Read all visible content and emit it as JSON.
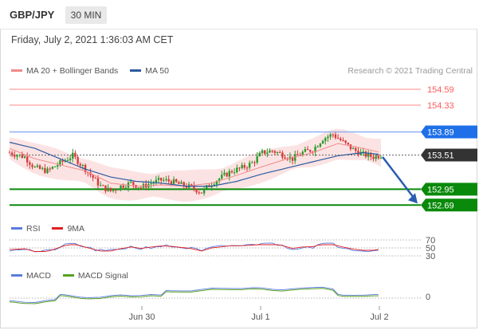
{
  "header": {
    "symbol": "GBP/JPY",
    "timeframe": "30 MIN"
  },
  "timestamp": "Friday, July 2, 2021 1:36:03 AM CET",
  "legend_main": [
    {
      "label": "MA 20 + Bollinger Bands",
      "color": "#f08a8a"
    },
    {
      "label": "MA 50",
      "color": "#2c5aa0"
    }
  ],
  "copyright": "Research © 2021 Trading Central",
  "legend_rsi": [
    {
      "label": "RSI",
      "color": "#5b7be0"
    },
    {
      "label": "9MA",
      "color": "#e02020"
    }
  ],
  "legend_macd": [
    {
      "label": "MACD",
      "color": "#5b7be0"
    },
    {
      "label": "MACD Signal",
      "color": "#5aa020"
    }
  ],
  "colors": {
    "resistance": "#ff5a5a",
    "pivot": "#1e6fe8",
    "support": "#0a8a0a",
    "last": "#333333",
    "arrow": "#2a5db0",
    "up_candle": "#2a9a2a",
    "down_candle": "#d83a3a"
  },
  "chart_data": [
    {
      "type": "candlestick",
      "name": "price",
      "ylim": [
        152.55,
        154.72
      ],
      "levels": [
        {
          "value": 154.59,
          "label": "154.59",
          "kind": "resistance"
        },
        {
          "value": 154.33,
          "label": "154.33",
          "kind": "resistance"
        },
        {
          "value": 153.89,
          "label": "153.89",
          "kind": "pivot"
        },
        {
          "value": 153.51,
          "label": "153.51",
          "kind": "last"
        },
        {
          "value": 152.95,
          "label": "152.95",
          "kind": "support"
        },
        {
          "value": 152.69,
          "label": "152.69",
          "kind": "support"
        }
      ],
      "x_ticks": [
        "Jun 30",
        "Jul 1",
        "Jul 2"
      ],
      "close_path": [
        [
          0,
          153.55
        ],
        [
          6,
          153.48
        ],
        [
          10,
          153.3
        ],
        [
          15,
          153.25
        ],
        [
          20,
          153.38
        ],
        [
          25,
          153.5
        ],
        [
          30,
          153.28
        ],
        [
          36,
          153.0
        ],
        [
          40,
          152.92
        ],
        [
          44,
          153.0
        ],
        [
          48,
          153.05
        ],
        [
          52,
          152.98
        ],
        [
          56,
          153.05
        ],
        [
          60,
          153.1
        ],
        [
          64,
          153.08
        ],
        [
          68,
          153.02
        ],
        [
          72,
          152.98
        ],
        [
          76,
          152.9
        ],
        [
          80,
          153.05
        ],
        [
          84,
          153.15
        ],
        [
          88,
          153.25
        ],
        [
          92,
          153.3
        ],
        [
          96,
          153.38
        ],
        [
          100,
          153.55
        ],
        [
          104,
          153.58
        ],
        [
          108,
          153.52
        ],
        [
          112,
          153.45
        ],
        [
          116,
          153.55
        ],
        [
          120,
          153.6
        ],
        [
          124,
          153.78
        ],
        [
          128,
          153.85
        ],
        [
          132,
          153.72
        ],
        [
          136,
          153.6
        ],
        [
          140,
          153.52
        ],
        [
          144,
          153.48
        ],
        [
          147,
          153.51
        ]
      ],
      "ma20": [
        [
          0,
          153.62
        ],
        [
          10,
          153.45
        ],
        [
          20,
          153.35
        ],
        [
          30,
          153.25
        ],
        [
          40,
          153.05
        ],
        [
          50,
          153.0
        ],
        [
          60,
          153.02
        ],
        [
          70,
          153.0
        ],
        [
          80,
          153.05
        ],
        [
          90,
          153.18
        ],
        [
          100,
          153.32
        ],
        [
          110,
          153.45
        ],
        [
          120,
          153.55
        ],
        [
          130,
          153.7
        ],
        [
          140,
          153.62
        ],
        [
          147,
          153.55
        ]
      ],
      "ma50": [
        [
          0,
          153.72
        ],
        [
          10,
          153.62
        ],
        [
          20,
          153.45
        ],
        [
          30,
          153.28
        ],
        [
          40,
          153.15
        ],
        [
          50,
          153.08
        ],
        [
          60,
          153.05
        ],
        [
          70,
          153.0
        ],
        [
          80,
          153.0
        ],
        [
          90,
          153.08
        ],
        [
          100,
          153.2
        ],
        [
          110,
          153.3
        ],
        [
          120,
          153.4
        ],
        [
          130,
          153.5
        ],
        [
          140,
          153.55
        ],
        [
          147,
          153.52
        ]
      ],
      "forecast_arrow": {
        "from": [
          147,
          153.48
        ],
        "to": [
          160,
          152.69
        ]
      }
    },
    {
      "type": "line",
      "name": "RSI",
      "ylim": [
        20,
        80
      ],
      "ref_levels": [
        {
          "value": 70,
          "label": "70"
        },
        {
          "value": 50,
          "label": "50"
        },
        {
          "value": 30,
          "label": "30"
        }
      ]
    },
    {
      "type": "line",
      "name": "MACD",
      "ref_levels": [
        {
          "value": 0,
          "label": "0"
        }
      ]
    }
  ]
}
